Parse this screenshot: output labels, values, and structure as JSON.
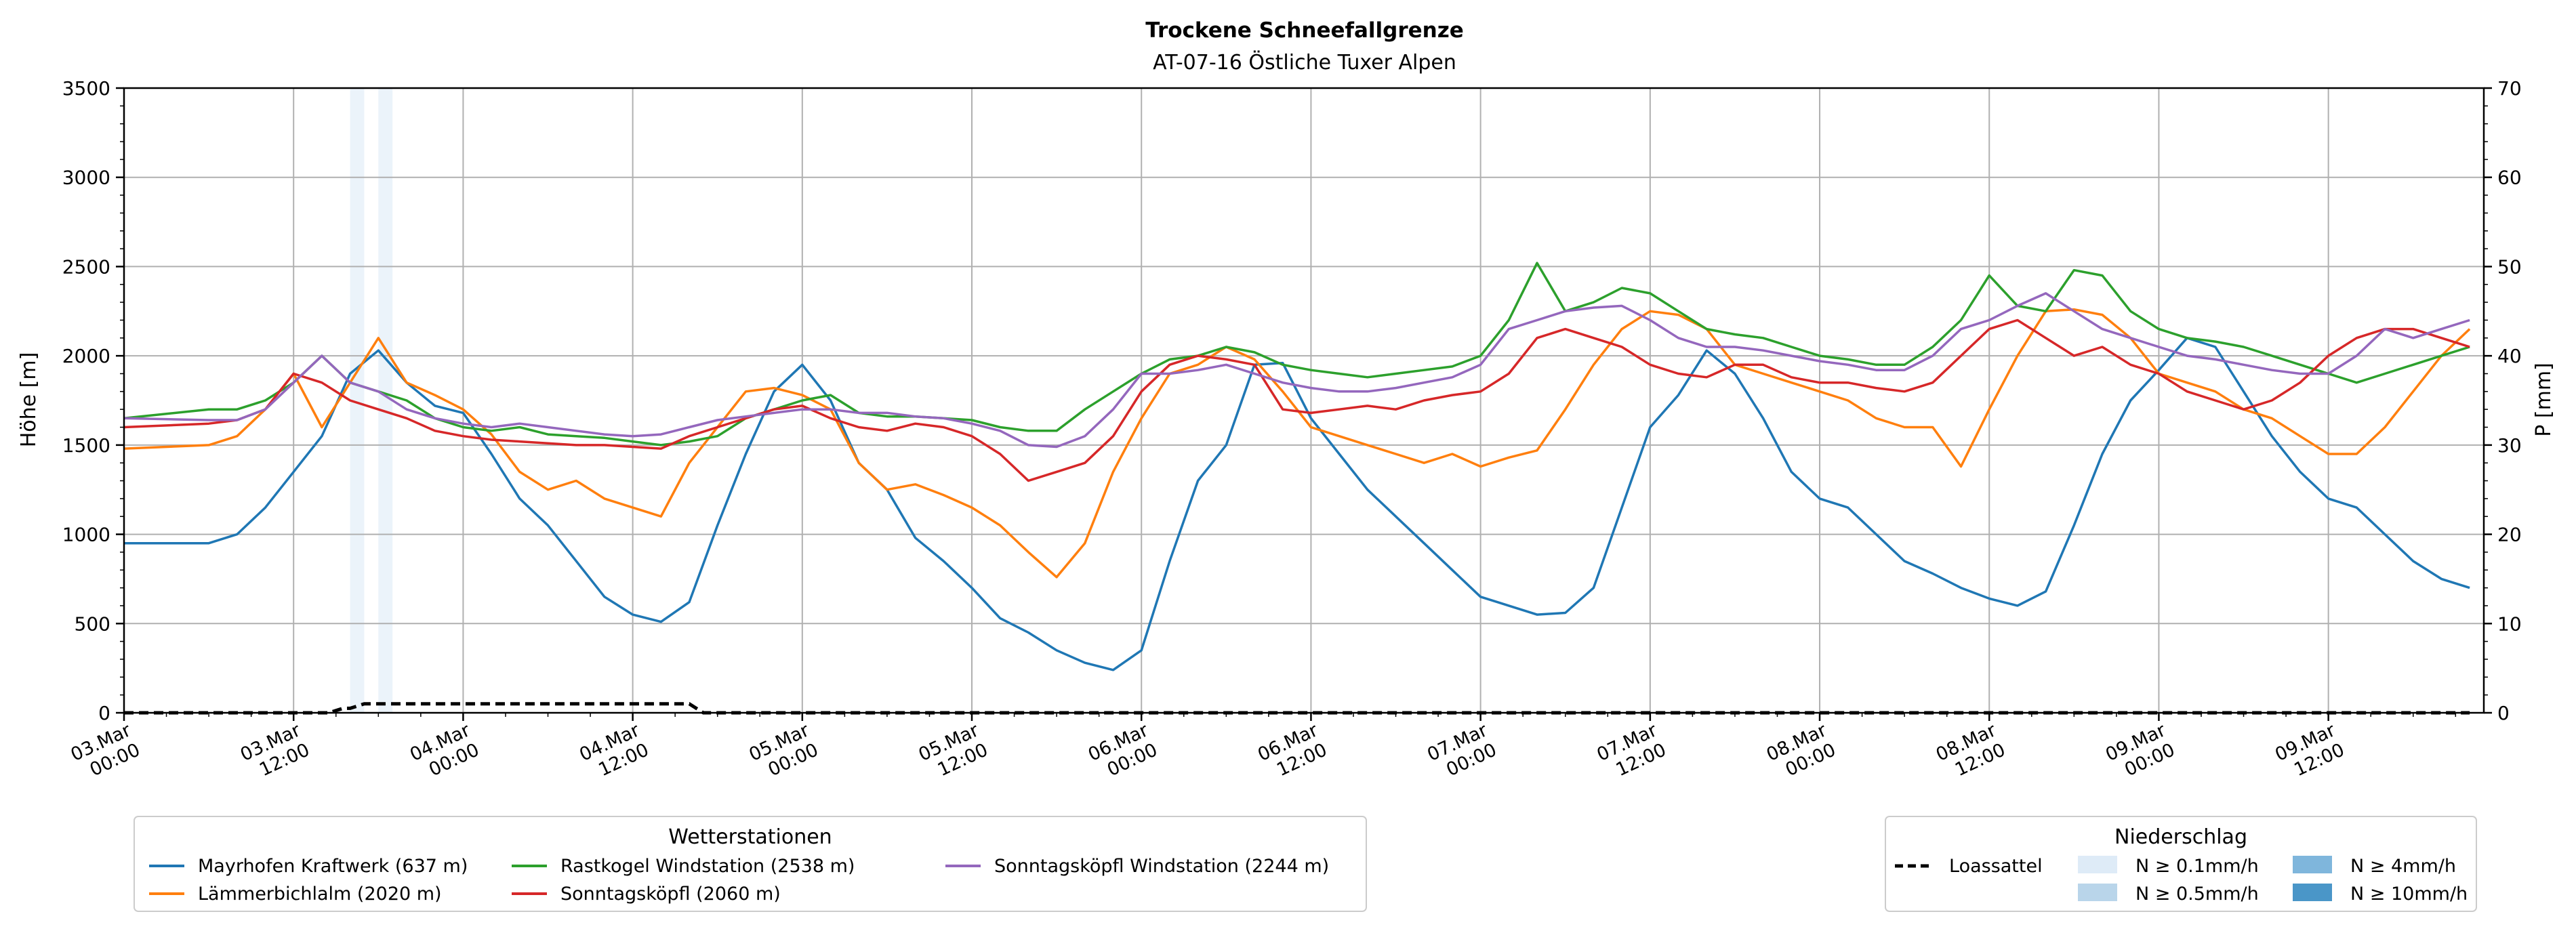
{
  "chart_data": {
    "type": "line",
    "title": "Trockene Schneefallgrenze",
    "subtitle": "AT-07-16 Östliche Tuxer Alpen",
    "ylabel": "Höhe [m]",
    "y2label": "P [mm]",
    "ylim": [
      0,
      3500
    ],
    "y2lim": [
      0,
      70
    ],
    "yticks": [
      "0",
      "500",
      "1000",
      "1500",
      "2000",
      "2500",
      "3000",
      "3500"
    ],
    "y2ticks": [
      "0",
      "10",
      "20",
      "30",
      "40",
      "50",
      "60",
      "70"
    ],
    "x_start": "2026-03-03 00:00",
    "x_end": "2026-03-09 23:00",
    "xticks": [
      {
        "date": "03.Mar",
        "time": "00:00"
      },
      {
        "date": "03.Mar",
        "time": "12:00"
      },
      {
        "date": "04.Mar",
        "time": "00:00"
      },
      {
        "date": "04.Mar",
        "time": "12:00"
      },
      {
        "date": "05.Mar",
        "time": "00:00"
      },
      {
        "date": "05.Mar",
        "time": "12:00"
      },
      {
        "date": "06.Mar",
        "time": "00:00"
      },
      {
        "date": "06.Mar",
        "time": "12:00"
      },
      {
        "date": "07.Mar",
        "time": "00:00"
      },
      {
        "date": "07.Mar",
        "time": "12:00"
      },
      {
        "date": "08.Mar",
        "time": "00:00"
      },
      {
        "date": "08.Mar",
        "time": "12:00"
      },
      {
        "date": "09.Mar",
        "time": "00:00"
      },
      {
        "date": "09.Mar",
        "time": "12:00"
      }
    ],
    "grid": true,
    "legend_stations_title": "Wetterstationen",
    "legend_precip_title": "Niederschlag",
    "series": [
      {
        "name": "Mayrhofen Kraftwerk (637 m)",
        "color": "#1f77b4",
        "x_hours": [
          0,
          6,
          8,
          10,
          12,
          14,
          16,
          18,
          20,
          22,
          24,
          26,
          28,
          30,
          32,
          34,
          36,
          38,
          40,
          42,
          44,
          46,
          48,
          50,
          52,
          54,
          56,
          58,
          60,
          62,
          64,
          66,
          68,
          70,
          72,
          74,
          76,
          78,
          80,
          82,
          84,
          86,
          88,
          90,
          92,
          94,
          96,
          98,
          100,
          102,
          104,
          106,
          108,
          110,
          112,
          114,
          116,
          118,
          120,
          122,
          124,
          126,
          128,
          130,
          132,
          134,
          136,
          138,
          140,
          142,
          144,
          146,
          148,
          150,
          152,
          154,
          156,
          158,
          160,
          162,
          164,
          166
        ],
        "values": [
          950,
          950,
          1000,
          1150,
          1350,
          1550,
          1900,
          2030,
          1850,
          1720,
          1680,
          1450,
          1200,
          1050,
          850,
          650,
          550,
          510,
          620,
          1050,
          1450,
          1800,
          1950,
          1750,
          1400,
          1250,
          980,
          850,
          700,
          530,
          450,
          350,
          280,
          240,
          350,
          850,
          1300,
          1500,
          1950,
          1960,
          1650,
          1450,
          1250,
          1100,
          950,
          800,
          650,
          600,
          550,
          560,
          700,
          1150,
          1600,
          1780,
          2030,
          1900,
          1650,
          1350,
          1200,
          1150,
          1000,
          850,
          780,
          700,
          640,
          600,
          680,
          1050,
          1450,
          1750,
          1920,
          2100,
          2050,
          1800,
          1550,
          1350,
          1200,
          1150,
          1000,
          850,
          750,
          700
        ]
      },
      {
        "name": "Lämmerbichlalm (2020 m)",
        "color": "#ff7f0e",
        "x_hours": [
          0,
          6,
          8,
          10,
          12,
          14,
          16,
          18,
          20,
          22,
          24,
          26,
          28,
          30,
          32,
          34,
          36,
          38,
          40,
          42,
          44,
          46,
          48,
          50,
          52,
          54,
          56,
          58,
          60,
          62,
          64,
          66,
          68,
          70,
          72,
          74,
          76,
          78,
          80,
          82,
          84,
          86,
          88,
          90,
          92,
          94,
          96,
          98,
          100,
          102,
          104,
          106,
          108,
          110,
          112,
          114,
          116,
          118,
          120,
          122,
          124,
          126,
          128,
          130,
          132,
          134,
          136,
          138,
          140,
          142,
          144,
          146,
          148,
          150,
          152,
          154,
          156,
          158,
          160,
          162,
          164,
          166
        ],
        "values": [
          1480,
          1500,
          1550,
          1700,
          1900,
          1600,
          1850,
          2100,
          1850,
          1780,
          1700,
          1560,
          1350,
          1250,
          1300,
          1200,
          1150,
          1100,
          1400,
          1600,
          1800,
          1820,
          1780,
          1700,
          1400,
          1250,
          1280,
          1220,
          1150,
          1050,
          900,
          760,
          950,
          1350,
          1650,
          1900,
          1950,
          2050,
          1980,
          1800,
          1600,
          1550,
          1500,
          1450,
          1400,
          1450,
          1380,
          1430,
          1470,
          1700,
          1950,
          2150,
          2250,
          2230,
          2150,
          1950,
          1900,
          1850,
          1800,
          1750,
          1650,
          1600,
          1600,
          1380,
          1700,
          2000,
          2250,
          2260,
          2230,
          2100,
          1900,
          1850,
          1800,
          1700,
          1650,
          1550,
          1450,
          1450,
          1600,
          1800,
          2000,
          2150
        ]
      },
      {
        "name": "Rastkogel Windstation (2538 m)",
        "color": "#2ca02c",
        "x_hours": [
          0,
          6,
          8,
          10,
          12,
          14,
          16,
          18,
          20,
          22,
          24,
          26,
          28,
          30,
          32,
          34,
          36,
          38,
          40,
          42,
          44,
          46,
          48,
          50,
          52,
          54,
          56,
          58,
          60,
          62,
          64,
          66,
          68,
          70,
          72,
          74,
          76,
          78,
          80,
          82,
          84,
          86,
          88,
          90,
          92,
          94,
          96,
          98,
          100,
          102,
          104,
          106,
          108,
          110,
          112,
          114,
          116,
          118,
          120,
          122,
          124,
          126,
          128,
          130,
          132,
          134,
          136,
          138,
          140,
          142,
          144,
          146,
          148,
          150,
          152,
          154,
          156,
          158,
          160,
          162,
          164,
          166
        ],
        "values": [
          1650,
          1700,
          1700,
          1750,
          1850,
          2000,
          1850,
          1800,
          1750,
          1650,
          1600,
          1580,
          1600,
          1560,
          1550,
          1540,
          1520,
          1500,
          1520,
          1550,
          1650,
          1700,
          1750,
          1780,
          1680,
          1660,
          1660,
          1650,
          1640,
          1600,
          1580,
          1580,
          1700,
          1800,
          1900,
          1980,
          2000,
          2050,
          2020,
          1950,
          1920,
          1900,
          1880,
          1900,
          1920,
          1940,
          2000,
          2200,
          2520,
          2250,
          2300,
          2380,
          2350,
          2250,
          2150,
          2120,
          2100,
          2050,
          2000,
          1980,
          1950,
          1950,
          2050,
          2200,
          2450,
          2280,
          2250,
          2480,
          2450,
          2250,
          2150,
          2100,
          2080,
          2050,
          2000,
          1950,
          1900,
          1850,
          1900,
          1950,
          2000,
          2050
        ]
      },
      {
        "name": "Sonntagsköpfl (2060 m)",
        "color": "#d62728",
        "x_hours": [
          0,
          6,
          8,
          10,
          12,
          14,
          16,
          18,
          20,
          22,
          24,
          26,
          28,
          30,
          32,
          34,
          36,
          38,
          40,
          42,
          44,
          46,
          48,
          50,
          52,
          54,
          56,
          58,
          60,
          62,
          64,
          66,
          68,
          70,
          72,
          74,
          76,
          78,
          80,
          82,
          84,
          86,
          88,
          90,
          92,
          94,
          96,
          98,
          100,
          102,
          104,
          106,
          108,
          110,
          112,
          114,
          116,
          118,
          120,
          122,
          124,
          126,
          128,
          130,
          132,
          134,
          136,
          138,
          140,
          142,
          144,
          146,
          148,
          150,
          152,
          154,
          156,
          158,
          160,
          162,
          164,
          166
        ],
        "values": [
          1600,
          1620,
          1640,
          1700,
          1900,
          1850,
          1750,
          1700,
          1650,
          1580,
          1550,
          1530,
          1520,
          1510,
          1500,
          1500,
          1490,
          1480,
          1550,
          1600,
          1650,
          1700,
          1720,
          1650,
          1600,
          1580,
          1620,
          1600,
          1550,
          1450,
          1300,
          1350,
          1400,
          1550,
          1800,
          1950,
          2000,
          1980,
          1950,
          1700,
          1680,
          1700,
          1720,
          1700,
          1750,
          1780,
          1800,
          1900,
          2100,
          2150,
          2100,
          2050,
          1950,
          1900,
          1880,
          1950,
          1950,
          1880,
          1850,
          1850,
          1820,
          1800,
          1850,
          2000,
          2150,
          2200,
          2100,
          2000,
          2050,
          1950,
          1900,
          1800,
          1750,
          1700,
          1750,
          1850,
          2000,
          2100,
          2150,
          2150,
          2100,
          2050
        ]
      },
      {
        "name": "Sonntagsköpfl Windstation (2244 m)",
        "color": "#9467bd",
        "x_hours": [
          0,
          6,
          8,
          10,
          12,
          14,
          16,
          18,
          20,
          22,
          24,
          26,
          28,
          30,
          32,
          34,
          36,
          38,
          40,
          42,
          44,
          46,
          48,
          50,
          52,
          54,
          56,
          58,
          60,
          62,
          64,
          66,
          68,
          70,
          72,
          74,
          76,
          78,
          80,
          82,
          84,
          86,
          88,
          90,
          92,
          94,
          96,
          98,
          100,
          102,
          104,
          106,
          108,
          110,
          112,
          114,
          116,
          118,
          120,
          122,
          124,
          126,
          128,
          130,
          132,
          134,
          136,
          138,
          140,
          142,
          144,
          146,
          148,
          150,
          152,
          154,
          156,
          158,
          160,
          162,
          164,
          166
        ],
        "values": [
          1650,
          1640,
          1640,
          1700,
          1850,
          2000,
          1850,
          1800,
          1700,
          1650,
          1620,
          1600,
          1620,
          1600,
          1580,
          1560,
          1550,
          1560,
          1600,
          1640,
          1660,
          1680,
          1700,
          1700,
          1680,
          1680,
          1660,
          1650,
          1620,
          1580,
          1500,
          1490,
          1550,
          1700,
          1900,
          1900,
          1920,
          1950,
          1900,
          1850,
          1820,
          1800,
          1800,
          1820,
          1850,
          1880,
          1950,
          2150,
          2200,
          2250,
          2270,
          2280,
          2200,
          2100,
          2050,
          2050,
          2030,
          2000,
          1970,
          1950,
          1920,
          1920,
          2000,
          2150,
          2200,
          2280,
          2350,
          2250,
          2150,
          2100,
          2050,
          2000,
          1980,
          1950,
          1920,
          1900,
          1900,
          2000,
          2150,
          2100,
          2150,
          2200
        ]
      }
    ],
    "loassattel": {
      "name": "Loassattel",
      "x_hours": [
        0,
        12,
        14,
        14.5,
        15.5,
        16,
        17,
        18,
        19,
        20,
        21,
        22,
        23,
        24,
        25,
        26,
        26.5,
        27,
        27.5,
        28,
        29,
        30,
        31,
        32,
        33,
        34,
        35,
        36,
        36.5,
        37,
        37.5,
        38,
        39,
        40,
        41,
        42,
        43,
        44,
        48,
        60,
        72,
        84,
        96,
        108,
        120,
        132,
        144,
        156,
        166
      ],
      "values": [
        0,
        0,
        0,
        0,
        0.5,
        0.5,
        1,
        1,
        1,
        1,
        1,
        1,
        1,
        1,
        1,
        1,
        1,
        1,
        1,
        1,
        1,
        1,
        1,
        1,
        1,
        1,
        1,
        1,
        1,
        1,
        1,
        1,
        1,
        1,
        0,
        0,
        0,
        0,
        0,
        0,
        0,
        0,
        0,
        0,
        0,
        0,
        0,
        0,
        0
      ]
    },
    "precip_bars": [
      {
        "x_hour": 16.5,
        "class": "N ≥ 0.1mm/h"
      },
      {
        "x_hour": 18.5,
        "class": "N ≥ 0.1mm/h"
      }
    ],
    "precip_legend": [
      {
        "label": "N ≥ 0.1mm/h",
        "color": "#deebf7"
      },
      {
        "label": "N ≥ 0.5mm/h",
        "color": "#b9d5ea"
      },
      {
        "label": "N ≥ 4mm/h",
        "color": "#7fb6dc"
      },
      {
        "label": "N ≥ 10mm/h",
        "color": "#4a96c8"
      }
    ]
  }
}
